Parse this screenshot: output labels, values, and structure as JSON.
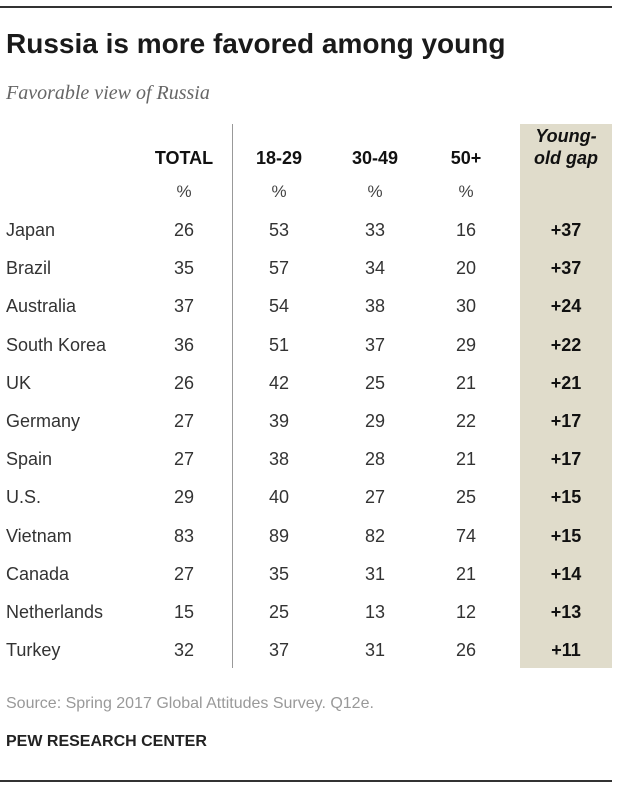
{
  "title": "Russia is more favored among young",
  "subtitle": "Favorable view of Russia",
  "source": "Source: Spring 2017 Global Attitudes Survey. Q12e.",
  "org": "PEW RESEARCH CENTER",
  "colors": {
    "gap_background": "#e0dccb",
    "rule": "#333333"
  },
  "chart_data": {
    "type": "table",
    "columns": [
      "TOTAL",
      "18-29",
      "30-49",
      "50+",
      "Young-old gap"
    ],
    "units": [
      "%",
      "%",
      "%",
      "%"
    ],
    "gap_header_lines": [
      "Young-",
      "old gap"
    ],
    "rows": [
      {
        "country": "Japan",
        "total": "26",
        "a18_29": "53",
        "a30_49": "33",
        "a50": "16",
        "gap": "+37"
      },
      {
        "country": "Brazil",
        "total": "35",
        "a18_29": "57",
        "a30_49": "34",
        "a50": "20",
        "gap": "+37"
      },
      {
        "country": "Australia",
        "total": "37",
        "a18_29": "54",
        "a30_49": "38",
        "a50": "30",
        "gap": "+24"
      },
      {
        "country": "South Korea",
        "total": "36",
        "a18_29": "51",
        "a30_49": "37",
        "a50": "29",
        "gap": "+22"
      },
      {
        "country": "UK",
        "total": "26",
        "a18_29": "42",
        "a30_49": "25",
        "a50": "21",
        "gap": "+21"
      },
      {
        "country": "Germany",
        "total": "27",
        "a18_29": "39",
        "a30_49": "29",
        "a50": "22",
        "gap": "+17"
      },
      {
        "country": "Spain",
        "total": "27",
        "a18_29": "38",
        "a30_49": "28",
        "a50": "21",
        "gap": "+17"
      },
      {
        "country": "U.S.",
        "total": "29",
        "a18_29": "40",
        "a30_49": "27",
        "a50": "25",
        "gap": "+15"
      },
      {
        "country": "Vietnam",
        "total": "83",
        "a18_29": "89",
        "a30_49": "82",
        "a50": "74",
        "gap": "+15"
      },
      {
        "country": "Canada",
        "total": "27",
        "a18_29": "35",
        "a30_49": "31",
        "a50": "21",
        "gap": "+14"
      },
      {
        "country": "Netherlands",
        "total": "15",
        "a18_29": "25",
        "a30_49": "13",
        "a50": "12",
        "gap": "+13"
      },
      {
        "country": "Turkey",
        "total": "32",
        "a18_29": "37",
        "a30_49": "31",
        "a50": "26",
        "gap": "+11"
      }
    ]
  }
}
